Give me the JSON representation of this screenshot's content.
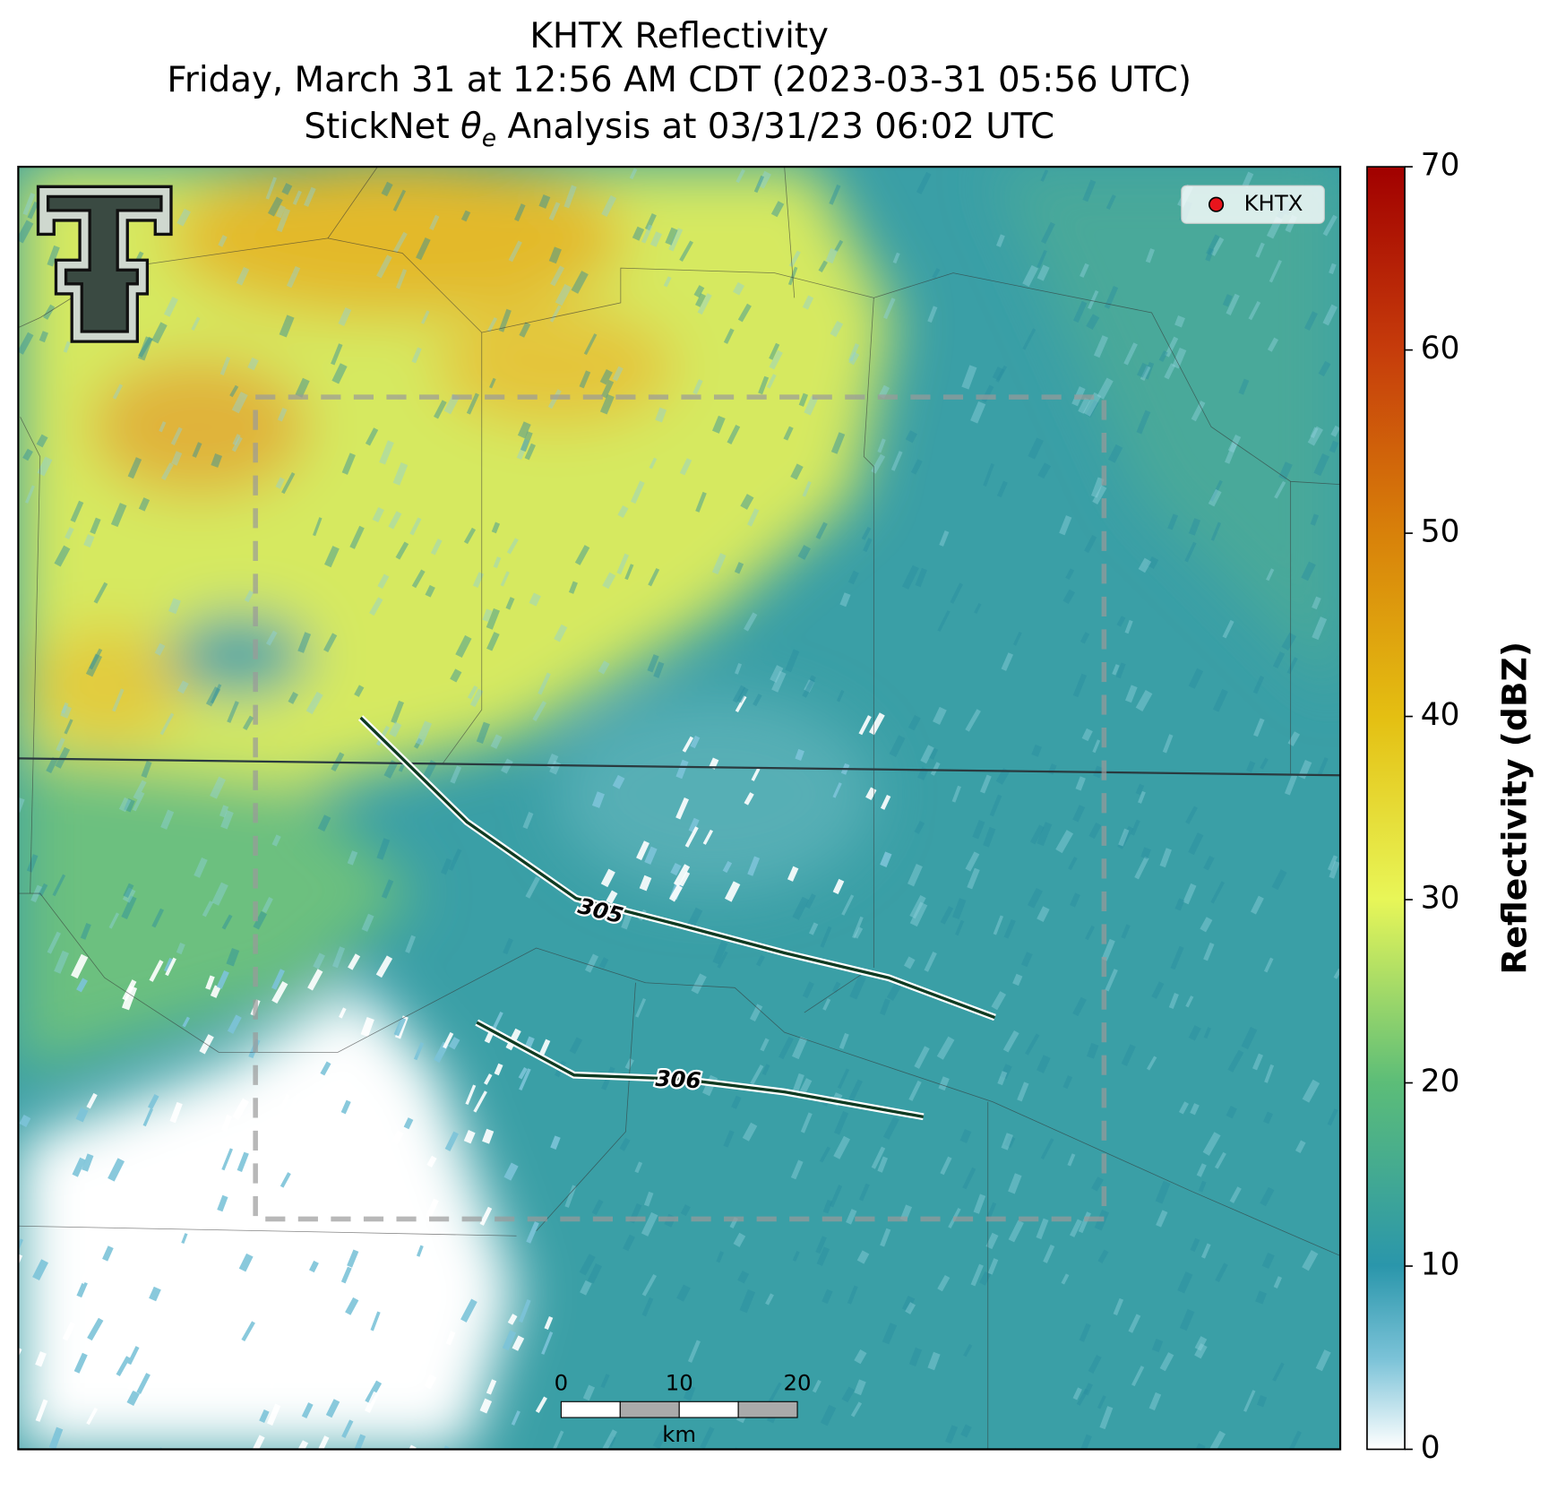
{
  "header": {
    "title": "KHTX Reflectivity",
    "subtitle": "Friday, March 31 at 12:56 AM CDT (2023-03-31 05:56 UTC)",
    "analysis": {
      "before": "StickNet",
      "symbol": "θ",
      "subscript": "e",
      "after": "Analysis at 03/31/23 06:02 UTC"
    }
  },
  "legend": {
    "label": "KHTX",
    "color": "#e8141c"
  },
  "contours": [
    {
      "label": "305"
    },
    {
      "label": "306"
    }
  ],
  "scalebar": {
    "ticks": [
      0,
      10,
      20
    ],
    "unit": "km"
  },
  "colorbar": {
    "label": "Reflectivity (dBZ)",
    "lim": [
      0,
      70
    ],
    "ticks": [
      0,
      10,
      20,
      30,
      40,
      50,
      60,
      70
    ]
  }
}
